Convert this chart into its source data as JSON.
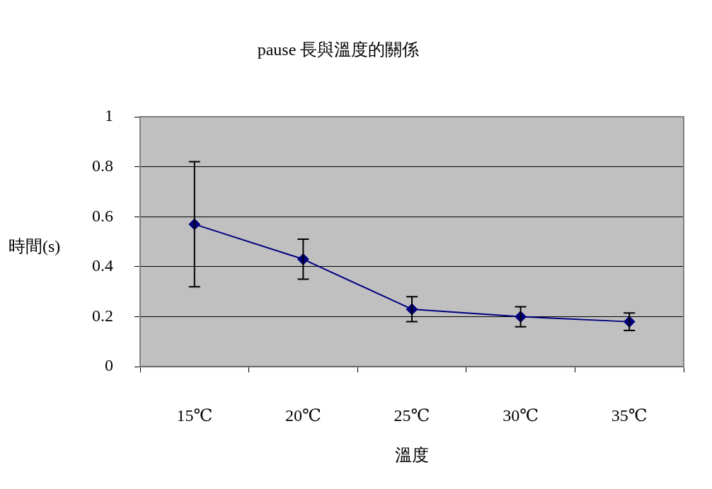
{
  "chart_data": {
    "type": "line",
    "title": "pause 長與溫度的關係",
    "xlabel": "溫度",
    "ylabel": "時間(s)",
    "categories": [
      "15℃",
      "20℃",
      "25℃",
      "30℃",
      "35℃"
    ],
    "series": [
      {
        "color": "#000080",
        "values": [
          0.57,
          0.43,
          0.23,
          0.2,
          0.18
        ],
        "errors": [
          0.25,
          0.08,
          0.05,
          0.04,
          0.035
        ]
      }
    ],
    "ylim": [
      0,
      1
    ],
    "yticks": [
      0,
      0.2,
      0.4,
      0.6,
      0.8,
      1
    ],
    "grid": "y",
    "legend": false,
    "marker": "diamond",
    "line_style": "solid"
  }
}
